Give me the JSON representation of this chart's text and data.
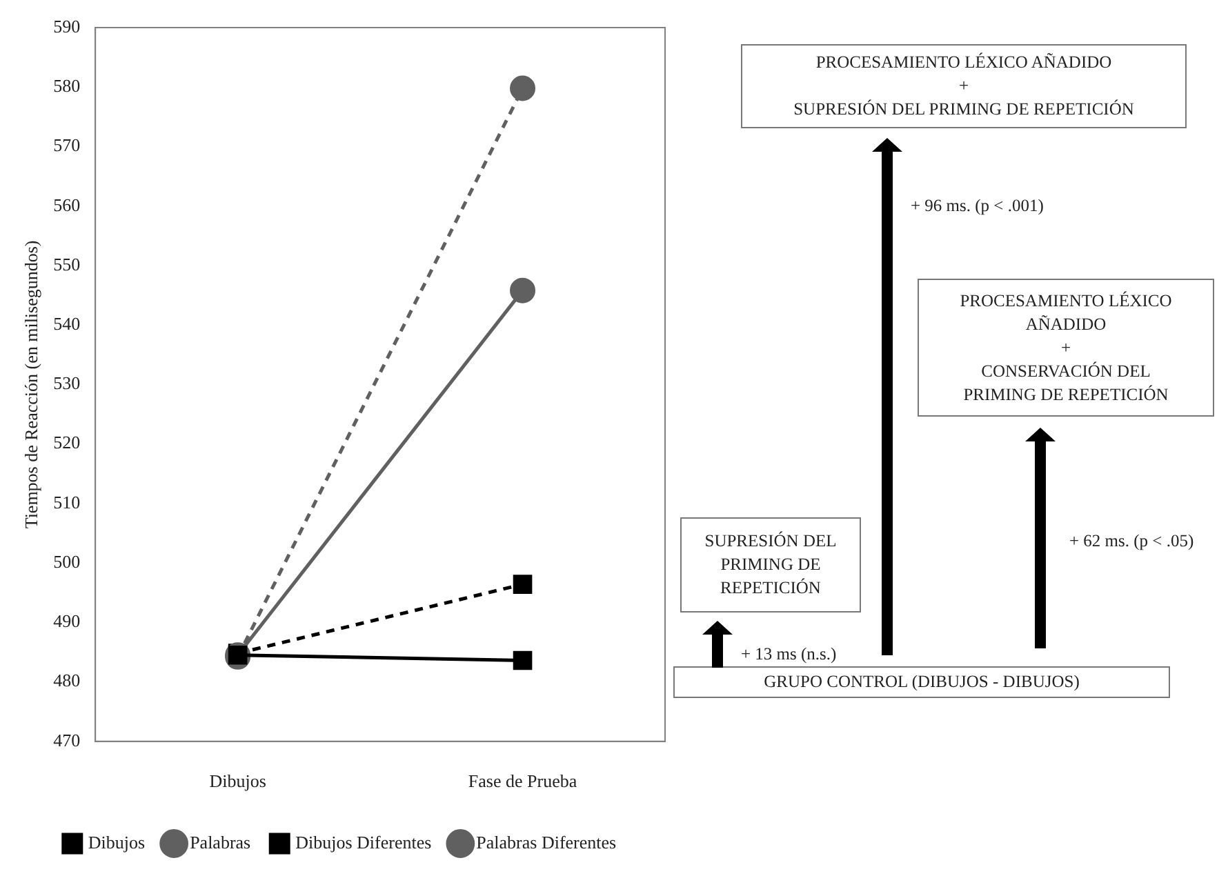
{
  "chart_data": {
    "type": "line",
    "ylabel": "Tiempos de Reacción (en milisegundos)",
    "categories": [
      "Dibujos",
      "Fase de Prueba"
    ],
    "series": [
      {
        "name": "Dibujos",
        "color": "#000000",
        "marker": "square",
        "line_style": "solid",
        "values": [
          484.5,
          483.6
        ]
      },
      {
        "name": "Palabras",
        "color": "#606060",
        "marker": "circle",
        "line_style": "solid",
        "values": [
          484.5,
          545.8
        ]
      },
      {
        "name": "Dibujos Diferentes",
        "color": "#000000",
        "marker": "square",
        "line_style": "dashed",
        "values": [
          484.8,
          496.4
        ]
      },
      {
        "name": "Palabras Diferentes",
        "color": "#606060",
        "marker": "circle",
        "line_style": "dashed",
        "values": [
          484.2,
          579.8
        ]
      }
    ],
    "ylim": [
      470,
      590
    ],
    "yticks": [
      470,
      480,
      490,
      500,
      510,
      520,
      530,
      540,
      550,
      560,
      570,
      580,
      590
    ],
    "grid": false,
    "legend": "bottom",
    "annotations": [
      "PROCESAMIENTO LÉXICO AÑADIDO\n+\nSUPRESIÓN DEL PRIMING DE REPETICIÓN",
      "+ 96 ms. (p < .001)",
      "PROCESAMIENTO LÉXICO\nAÑADIDO\n+\nCONSERVACIÓN DEL\nPRIMING DE REPETICIÓN",
      "+ 62 ms. (p < .05)",
      "SUPRESIÓN DEL\nPRIMING DE\nREPETICIÓN",
      "+ 13 ms (n.s.)",
      "GRUPO CONTROL (DIBUJOS - DIBUJOS)"
    ]
  }
}
